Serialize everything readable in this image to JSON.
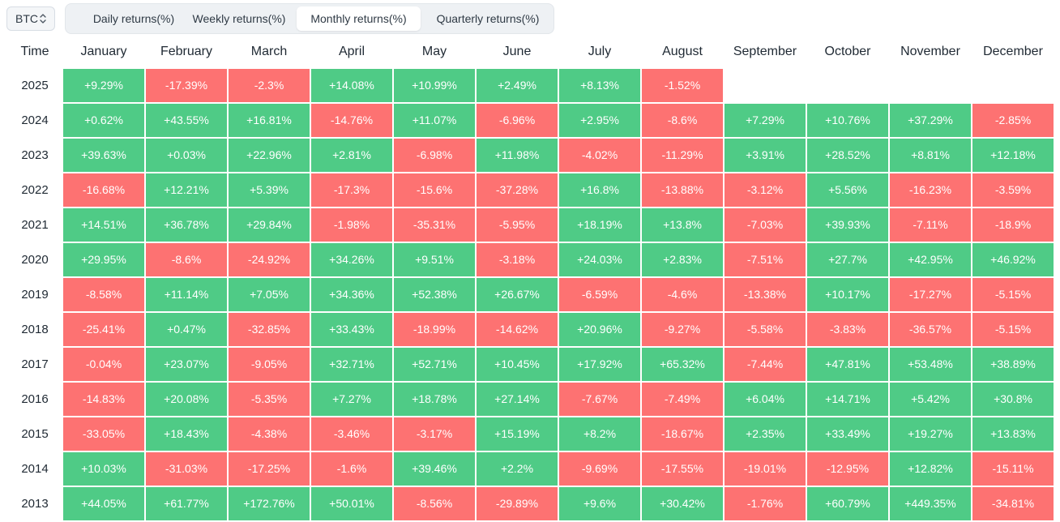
{
  "asset_select": {
    "value": "BTC"
  },
  "tabs": [
    {
      "label": "Daily returns(%)",
      "active": false
    },
    {
      "label": "Weekly returns(%)",
      "active": false
    },
    {
      "label": "Monthly returns(%)",
      "active": true
    },
    {
      "label": "Quarterly returns(%)",
      "active": false
    }
  ],
  "colors": {
    "positive": "#4fcb86",
    "negative": "#fd7272"
  },
  "table": {
    "time_header": "Time",
    "months": [
      "January",
      "February",
      "March",
      "April",
      "May",
      "June",
      "July",
      "August",
      "September",
      "October",
      "November",
      "December"
    ],
    "rows": [
      {
        "year": "2025",
        "values": [
          "+9.29%",
          "-17.39%",
          "-2.3%",
          "+14.08%",
          "+10.99%",
          "+2.49%",
          "+8.13%",
          "-1.52%",
          "",
          "",
          "",
          ""
        ]
      },
      {
        "year": "2024",
        "values": [
          "+0.62%",
          "+43.55%",
          "+16.81%",
          "-14.76%",
          "+11.07%",
          "-6.96%",
          "+2.95%",
          "-8.6%",
          "+7.29%",
          "+10.76%",
          "+37.29%",
          "-2.85%"
        ]
      },
      {
        "year": "2023",
        "values": [
          "+39.63%",
          "+0.03%",
          "+22.96%",
          "+2.81%",
          "-6.98%",
          "+11.98%",
          "-4.02%",
          "-11.29%",
          "+3.91%",
          "+28.52%",
          "+8.81%",
          "+12.18%"
        ]
      },
      {
        "year": "2022",
        "values": [
          "-16.68%",
          "+12.21%",
          "+5.39%",
          "-17.3%",
          "-15.6%",
          "-37.28%",
          "+16.8%",
          "-13.88%",
          "-3.12%",
          "+5.56%",
          "-16.23%",
          "-3.59%"
        ]
      },
      {
        "year": "2021",
        "values": [
          "+14.51%",
          "+36.78%",
          "+29.84%",
          "-1.98%",
          "-35.31%",
          "-5.95%",
          "+18.19%",
          "+13.8%",
          "-7.03%",
          "+39.93%",
          "-7.11%",
          "-18.9%"
        ]
      },
      {
        "year": "2020",
        "values": [
          "+29.95%",
          "-8.6%",
          "-24.92%",
          "+34.26%",
          "+9.51%",
          "-3.18%",
          "+24.03%",
          "+2.83%",
          "-7.51%",
          "+27.7%",
          "+42.95%",
          "+46.92%"
        ]
      },
      {
        "year": "2019",
        "values": [
          "-8.58%",
          "+11.14%",
          "+7.05%",
          "+34.36%",
          "+52.38%",
          "+26.67%",
          "-6.59%",
          "-4.6%",
          "-13.38%",
          "+10.17%",
          "-17.27%",
          "-5.15%"
        ]
      },
      {
        "year": "2018",
        "values": [
          "-25.41%",
          "+0.47%",
          "-32.85%",
          "+33.43%",
          "-18.99%",
          "-14.62%",
          "+20.96%",
          "-9.27%",
          "-5.58%",
          "-3.83%",
          "-36.57%",
          "-5.15%"
        ]
      },
      {
        "year": "2017",
        "values": [
          "-0.04%",
          "+23.07%",
          "-9.05%",
          "+32.71%",
          "+52.71%",
          "+10.45%",
          "+17.92%",
          "+65.32%",
          "-7.44%",
          "+47.81%",
          "+53.48%",
          "+38.89%"
        ]
      },
      {
        "year": "2016",
        "values": [
          "-14.83%",
          "+20.08%",
          "-5.35%",
          "+7.27%",
          "+18.78%",
          "+27.14%",
          "-7.67%",
          "-7.49%",
          "+6.04%",
          "+14.71%",
          "+5.42%",
          "+30.8%"
        ]
      },
      {
        "year": "2015",
        "values": [
          "-33.05%",
          "+18.43%",
          "-4.38%",
          "-3.46%",
          "-3.17%",
          "+15.19%",
          "+8.2%",
          "-18.67%",
          "+2.35%",
          "+33.49%",
          "+19.27%",
          "+13.83%"
        ]
      },
      {
        "year": "2014",
        "values": [
          "+10.03%",
          "-31.03%",
          "-17.25%",
          "-1.6%",
          "+39.46%",
          "+2.2%",
          "-9.69%",
          "-17.55%",
          "-19.01%",
          "-12.95%",
          "+12.82%",
          "-15.11%"
        ]
      },
      {
        "year": "2013",
        "values": [
          "+44.05%",
          "+61.77%",
          "+172.76%",
          "+50.01%",
          "-8.56%",
          "-29.89%",
          "+9.6%",
          "+30.42%",
          "-1.76%",
          "+60.79%",
          "+449.35%",
          "-34.81%"
        ]
      }
    ]
  }
}
